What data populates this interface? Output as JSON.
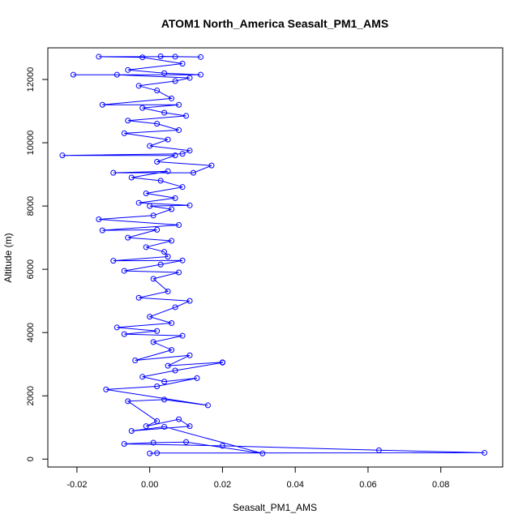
{
  "chart_data": {
    "type": "line",
    "title": "ATOM1 North_America Seasalt_PM1_AMS",
    "xlabel": "Seasalt_PM1_AMS",
    "ylabel": "Altitude (m)",
    "xlim": [
      -0.028,
      0.097
    ],
    "ylim": [
      -250,
      13000
    ],
    "x_ticks": [
      -0.02,
      0.0,
      0.02,
      0.04,
      0.06,
      0.08
    ],
    "x_tick_labels": [
      "-0.02",
      "0.00",
      "0.02",
      "0.04",
      "0.06",
      "0.08"
    ],
    "y_ticks": [
      0,
      2000,
      4000,
      6000,
      8000,
      10000,
      12000
    ],
    "y_tick_labels": [
      "0",
      "2000",
      "4000",
      "6000",
      "8000",
      "10000",
      "12000"
    ],
    "grid": false,
    "legend": "none",
    "series": [
      {
        "color": "#0000ff",
        "marker": "open-circle",
        "points": [
          [
            0.0,
            180
          ],
          [
            0.002,
            190
          ],
          [
            0.092,
            200
          ],
          [
            0.063,
            280
          ],
          [
            0.02,
            420
          ],
          [
            -0.007,
            480
          ],
          [
            0.001,
            520
          ],
          [
            0.01,
            540
          ],
          [
            0.031,
            180
          ],
          [
            0.004,
            1020
          ],
          [
            -0.005,
            890
          ],
          [
            0.011,
            1040
          ],
          [
            0.008,
            1260
          ],
          [
            -0.001,
            1040
          ],
          [
            0.002,
            1200
          ],
          [
            -0.006,
            1830
          ],
          [
            0.004,
            1880
          ],
          [
            0.016,
            1700
          ],
          [
            -0.012,
            2200
          ],
          [
            0.002,
            2300
          ],
          [
            0.013,
            2560
          ],
          [
            0.004,
            2450
          ],
          [
            -0.002,
            2600
          ],
          [
            0.007,
            2800
          ],
          [
            0.02,
            3050
          ],
          [
            0.02,
            3060
          ],
          [
            0.005,
            2950
          ],
          [
            0.011,
            3280
          ],
          [
            -0.004,
            3120
          ],
          [
            0.006,
            3450
          ],
          [
            0.001,
            3700
          ],
          [
            0.009,
            3900
          ],
          [
            -0.007,
            3950
          ],
          [
            0.002,
            4050
          ],
          [
            -0.009,
            4160
          ],
          [
            0.006,
            4300
          ],
          [
            0.0,
            4500
          ],
          [
            0.007,
            4800
          ],
          [
            0.011,
            5000
          ],
          [
            -0.003,
            5100
          ],
          [
            0.005,
            5300
          ],
          [
            0.001,
            5700
          ],
          [
            0.008,
            5900
          ],
          [
            -0.007,
            5950
          ],
          [
            0.003,
            6150
          ],
          [
            0.009,
            6280
          ],
          [
            -0.01,
            6270
          ],
          [
            0.005,
            6400
          ],
          [
            0.004,
            6550
          ],
          [
            -0.001,
            6700
          ],
          [
            0.006,
            6900
          ],
          [
            -0.006,
            7000
          ],
          [
            0.002,
            7250
          ],
          [
            -0.013,
            7230
          ],
          [
            0.008,
            7400
          ],
          [
            -0.014,
            7580
          ],
          [
            0.001,
            7700
          ],
          [
            0.006,
            7900
          ],
          [
            0.0,
            8000
          ],
          [
            0.011,
            8020
          ],
          [
            -0.003,
            8100
          ],
          [
            0.007,
            8250
          ],
          [
            -0.001,
            8400
          ],
          [
            0.009,
            8600
          ],
          [
            0.003,
            8800
          ],
          [
            -0.005,
            8900
          ],
          [
            0.005,
            9100
          ],
          [
            -0.01,
            9050
          ],
          [
            0.012,
            9050
          ],
          [
            0.017,
            9280
          ],
          [
            0.002,
            9400
          ],
          [
            0.007,
            9600
          ],
          [
            -0.024,
            9600
          ],
          [
            0.009,
            9650
          ],
          [
            0.011,
            9750
          ],
          [
            0.0,
            9900
          ],
          [
            0.005,
            10100
          ],
          [
            -0.007,
            10300
          ],
          [
            0.008,
            10400
          ],
          [
            0.002,
            10600
          ],
          [
            -0.006,
            10700
          ],
          [
            0.01,
            10850
          ],
          [
            0.004,
            10950
          ],
          [
            -0.002,
            11100
          ],
          [
            0.008,
            11200
          ],
          [
            -0.013,
            11200
          ],
          [
            0.006,
            11400
          ],
          [
            0.002,
            11650
          ],
          [
            -0.003,
            11800
          ],
          [
            0.007,
            11950
          ],
          [
            0.011,
            12050
          ],
          [
            -0.009,
            12150
          ],
          [
            -0.021,
            12150
          ],
          [
            0.014,
            12150
          ],
          [
            0.004,
            12200
          ],
          [
            -0.006,
            12300
          ],
          [
            0.009,
            12500
          ],
          [
            -0.002,
            12700
          ],
          [
            -0.014,
            12720
          ],
          [
            0.007,
            12720
          ],
          [
            0.014,
            12710
          ],
          [
            0.003,
            12730
          ]
        ]
      }
    ]
  }
}
